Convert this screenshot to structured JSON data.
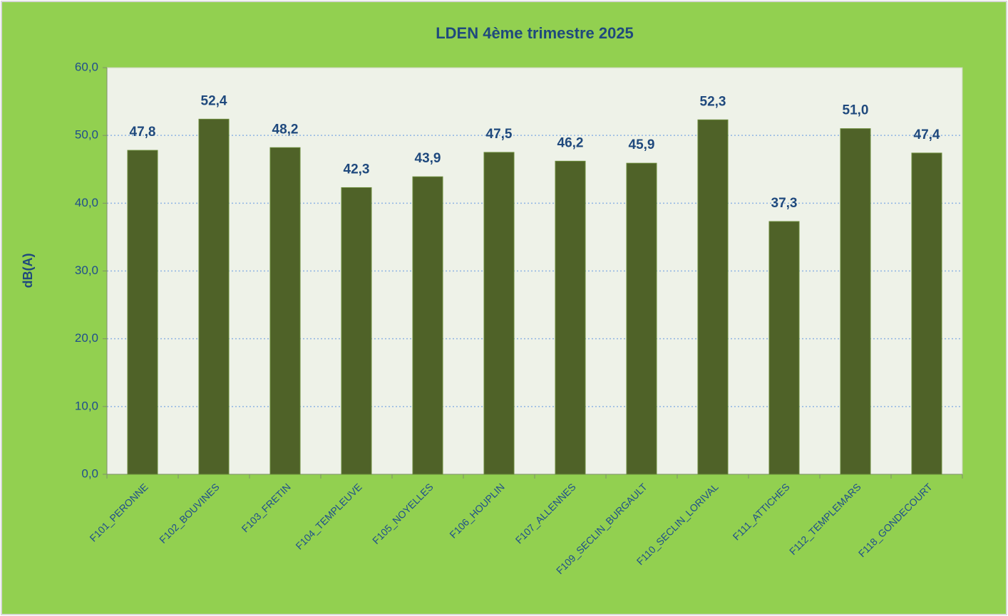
{
  "chart_data": {
    "type": "bar",
    "title": "LDEN 4ème trimestre 2025",
    "y_label": "dB(A)",
    "categories": [
      "F101_PERONNE",
      "F102_BOUVINES",
      "F103_FRETIN",
      "F104_TEMPLEUVE",
      "F105_NOYELLES",
      "F106_HOUPLIN",
      "F107_ALLENNES",
      "F109_SECLIN_BURGAULT",
      "F110_SECLIN_LORIVAL",
      "F111_ATTICHES",
      "F112_TEMPLEMARS",
      "F118_GONDECOURT"
    ],
    "values": [
      47.8,
      52.4,
      48.2,
      42.3,
      43.9,
      47.5,
      46.2,
      45.9,
      52.3,
      37.3,
      51.0,
      47.4
    ],
    "value_labels": [
      "47,8",
      "52,4",
      "48,2",
      "42,3",
      "43,9",
      "47,5",
      "46,2",
      "45,9",
      "52,3",
      "37,3",
      "51,0",
      "47,4"
    ],
    "color": "#4f6228",
    "ylim": [
      0,
      60
    ],
    "yticks": [
      {
        "value": 0,
        "label": "0,0"
      },
      {
        "value": 10,
        "label": "10,0"
      },
      {
        "value": 20,
        "label": "20,0"
      },
      {
        "value": 30,
        "label": "30,0"
      },
      {
        "value": 40,
        "label": "40,0"
      },
      {
        "value": 50,
        "label": "50,0"
      },
      {
        "value": 60,
        "label": "60,0"
      }
    ],
    "grid": true
  }
}
